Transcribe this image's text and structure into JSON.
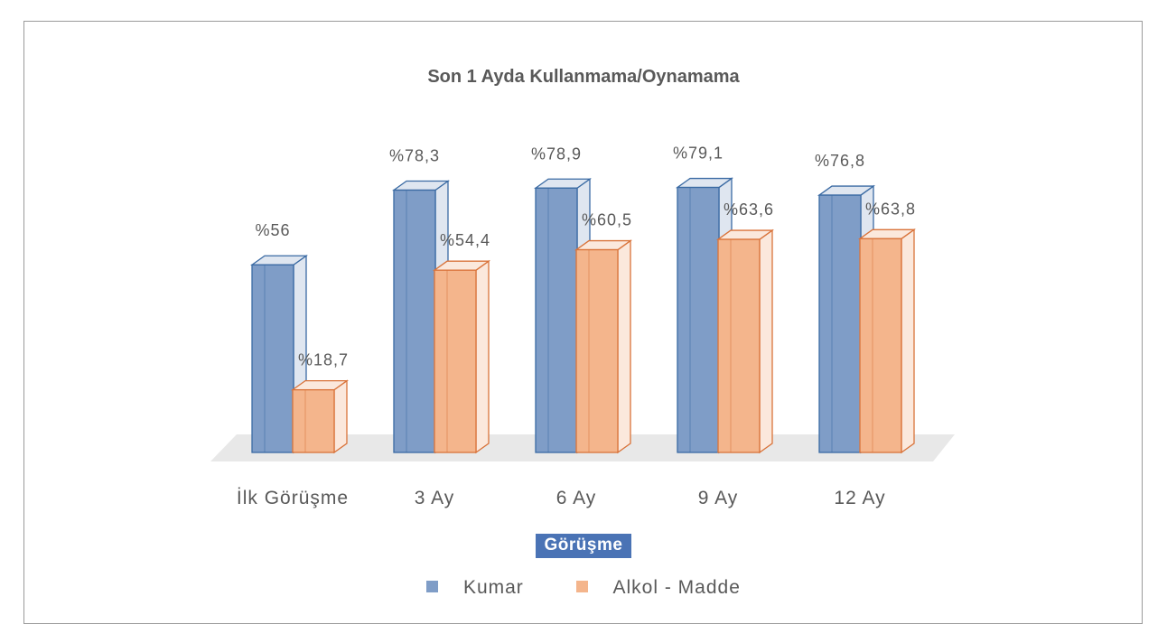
{
  "chart_data": {
    "type": "bar",
    "title": "Son 1 Ayda Kullanmama/Oynamama",
    "xlabel": "Görüşme",
    "ylabel": "",
    "ylim": [
      0,
      100
    ],
    "grid": false,
    "legend_position": "bottom",
    "categories": [
      "İlk Görüşme",
      "3 Ay",
      "6 Ay",
      "9 Ay",
      "12 Ay"
    ],
    "series": [
      {
        "name": "Kumar",
        "values": [
          56,
          78.3,
          78.9,
          79.1,
          76.8
        ],
        "labels": [
          "%56",
          "%78,3",
          "%78,9",
          "%79,1",
          "%76,8"
        ]
      },
      {
        "name": "Alkol - Madde",
        "values": [
          18.7,
          54.4,
          60.5,
          63.6,
          63.8
        ],
        "labels": [
          "%18,7",
          "%54,4",
          "%60,5",
          "%63,6",
          "%63,8"
        ]
      }
    ]
  },
  "colors": {
    "kumar_fill": "#7f9dc7",
    "kumar_stroke": "#3a6aa3",
    "kumar_shade": "#dfe6f0",
    "alkol_fill": "#f4b58c",
    "alkol_stroke": "#d9733a",
    "alkol_shade": "#fbe8dc",
    "floor": "#e8e8e8",
    "label_text": "#595959",
    "axis_title_bg": "#4a73b5"
  }
}
